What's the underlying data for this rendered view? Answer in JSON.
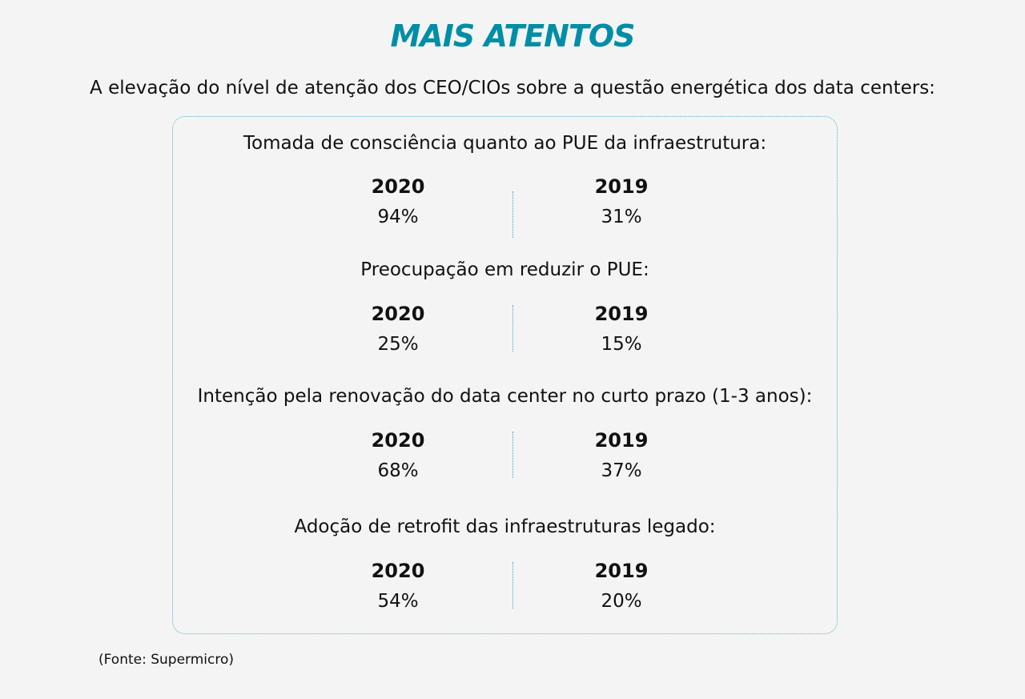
{
  "title": "MAIS ATENTOS",
  "subtitle": "A elevação do nível de atenção dos CEO/CIOs sobre a questão energética dos data centers:",
  "sections": [
    {
      "question": "Tomada de consciência quanto ao PUE da infraestrutura:",
      "year_a": "2020",
      "value_a": "94%",
      "year_b": "2019",
      "value_b": "31%"
    },
    {
      "question": "Preocupação em reduzir o PUE:",
      "year_a": "2020",
      "value_a": "25%",
      "year_b": "2019",
      "value_b": "15%"
    },
    {
      "question": "Intenção pela renovação do data center no curto prazo (1-3 anos):",
      "year_a": "2020",
      "value_a": "68%",
      "year_b": "2019",
      "value_b": "37%"
    },
    {
      "question": "Adoção de retrofit das infraestruturas legado:",
      "year_a": "2020",
      "value_a": "54%",
      "year_b": "2019",
      "value_b": "20%"
    }
  ],
  "source": "(Fonte: Supermicro)",
  "colors": {
    "accent": "#008ea6",
    "border": "#4fb3c8",
    "background": "#f4f4f4",
    "text": "#111111"
  }
}
